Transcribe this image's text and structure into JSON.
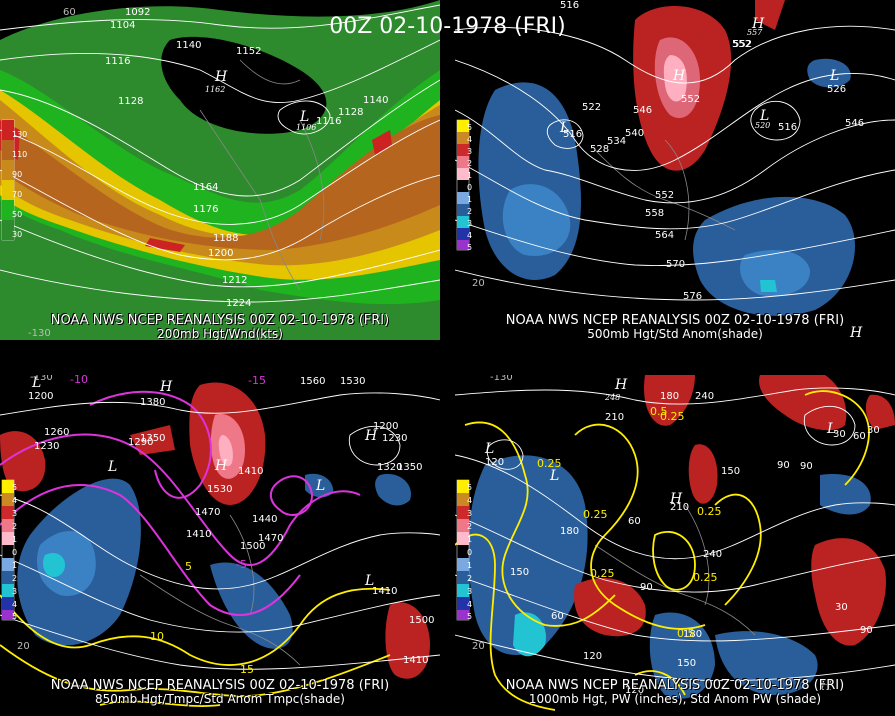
{
  "title": "00Z 02-10-1978 (FRI)",
  "panels": [
    {
      "id": "p1",
      "caption1": "NOAA NWS NCEP REANALYSIS 00Z 02-10-1978 (FRI)",
      "caption2": "200mb Hgt/Wnd(kts)",
      "scale": [
        "130",
        "110",
        "90",
        "70",
        "50",
        "30"
      ],
      "labels": [
        "1092",
        "1104",
        "1116",
        "1128",
        "1140",
        "1152",
        "1162",
        "1116",
        "1128",
        "1140",
        "1106",
        "1164",
        "1176",
        "1188",
        "1200",
        "1212",
        "1224"
      ],
      "grid": [
        "60",
        "-130",
        "20"
      ],
      "highs": [
        "H"
      ],
      "lows": [
        "L"
      ]
    },
    {
      "id": "p2",
      "caption1": "NOAA NWS NCEP REANALYSIS 00Z 02-10-1978 (FRI)",
      "caption2": "500mb Hgt/Std Anom(shade)",
      "scale": [
        "5",
        "4",
        "3",
        "2",
        "1",
        "0",
        "1",
        "2",
        "3",
        "4",
        "5"
      ],
      "labels": [
        "516",
        "552",
        "522",
        "516",
        "528",
        "534",
        "540",
        "546",
        "552",
        "558",
        "564",
        "570",
        "576",
        "552",
        "526",
        "546",
        "516",
        "552",
        "557",
        "520"
      ],
      "grid": [
        "20"
      ],
      "highs": [
        "H",
        "H",
        "H"
      ],
      "lows": [
        "L",
        "L",
        "L"
      ]
    },
    {
      "id": "p3",
      "caption1": "NOAA NWS NCEP REANALYSIS 00Z 02-10-1978 (FRI)",
      "caption2": "850mb Hgt/Tmpc/Std Anom Tmpc(shade)",
      "scale": [
        "5",
        "4",
        "3",
        "2",
        "1",
        "0",
        "1",
        "2",
        "3",
        "4",
        "5"
      ],
      "labels": [
        "1200",
        "1230",
        "1260",
        "1290",
        "1350",
        "1380",
        "1410",
        "1440",
        "1470",
        "1500",
        "1530",
        "1560",
        "1410",
        "1470",
        "1200",
        "1230",
        "1320",
        "1350",
        "1410",
        "1500",
        "1530",
        "1410"
      ],
      "temps": [
        "-10",
        "-15",
        "-5",
        "5",
        "10",
        "15"
      ],
      "grid": [
        "-130",
        "20"
      ],
      "highs": [
        "H",
        "H",
        "H"
      ],
      "lows": [
        "L",
        "L",
        "L",
        "L"
      ]
    },
    {
      "id": "p4",
      "caption1": "NOAA NWS NCEP REANALYSIS 00Z 02-10-1978 (FRI)",
      "caption2": "1000mb Hgt, PW (inches), Std Anom PW (shade)",
      "scale": [
        "5",
        "4",
        "3",
        "2",
        "1",
        "0",
        "1",
        "2",
        "3",
        "4",
        "5"
      ],
      "labels": [
        "180",
        "210",
        "240",
        "248",
        "150",
        "90",
        "120",
        "150",
        "180",
        "210",
        "240",
        "60",
        "30",
        "90",
        "120",
        "150",
        "180",
        "30",
        "60",
        "90",
        "120",
        "30",
        "90",
        "60"
      ],
      "pw": [
        "0.25",
        "0.25",
        "0.5",
        "0.25",
        "0.25",
        "0.5",
        "0.25",
        "0.25"
      ],
      "grid": [
        "-130",
        "20"
      ],
      "highs": [
        "H",
        "H",
        "H"
      ],
      "lows": [
        "L",
        "L",
        "L"
      ]
    }
  ],
  "colors": {
    "wind30": "#2d8a2d",
    "wind50": "#1fb31f",
    "wind70": "#e5c400",
    "wind90": "#c88a1a",
    "wind110": "#b5651d",
    "wind130": "#cc2222",
    "anomPos": "#cc2a2a",
    "anomNeg": "#2266aa"
  }
}
